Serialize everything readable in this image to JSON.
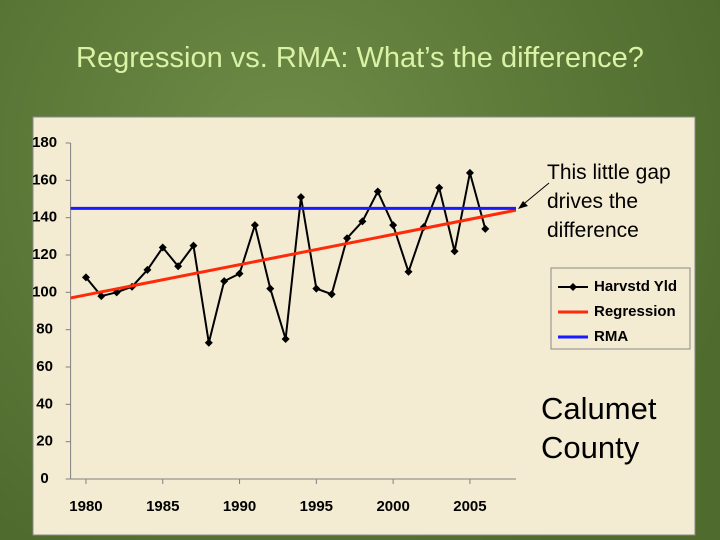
{
  "chart_data": {
    "type": "line",
    "title": "Regression vs. RMA: What’s the difference?",
    "series": [
      {
        "name": "Harvstd Yld",
        "color": "#000000",
        "marker": "diamond",
        "x": [
          1980,
          1981,
          1982,
          1983,
          1984,
          1985,
          1986,
          1987,
          1988,
          1989,
          1990,
          1991,
          1992,
          1993,
          1994,
          1995,
          1996,
          1997,
          1998,
          1999,
          2000,
          2001,
          2002,
          2003,
          2004,
          2005,
          2006
        ],
        "values": [
          108,
          98,
          100,
          103,
          112,
          124,
          114,
          125,
          73,
          106,
          110,
          136,
          102,
          75,
          151,
          102,
          99,
          129,
          138,
          154,
          136,
          111,
          135,
          156,
          122,
          164,
          134
        ]
      },
      {
        "name": "Regression",
        "color": "#ff2a0a",
        "x": [
          1979,
          2008
        ],
        "values": [
          97,
          144
        ]
      },
      {
        "name": "RMA",
        "color": "#1a1aff",
        "x": [
          1979,
          2008
        ],
        "values": [
          145,
          145
        ]
      }
    ],
    "xlim": [
      1979,
      2008
    ],
    "xticks": [
      1980,
      1985,
      1990,
      1995,
      2000,
      2005
    ],
    "ylim": [
      0,
      180
    ],
    "yticks": [
      0,
      20,
      40,
      60,
      80,
      100,
      120,
      140,
      160,
      180
    ],
    "grid": false,
    "legend": "right",
    "annotations": [
      "This little gap drives the difference",
      "Calumet County"
    ]
  }
}
